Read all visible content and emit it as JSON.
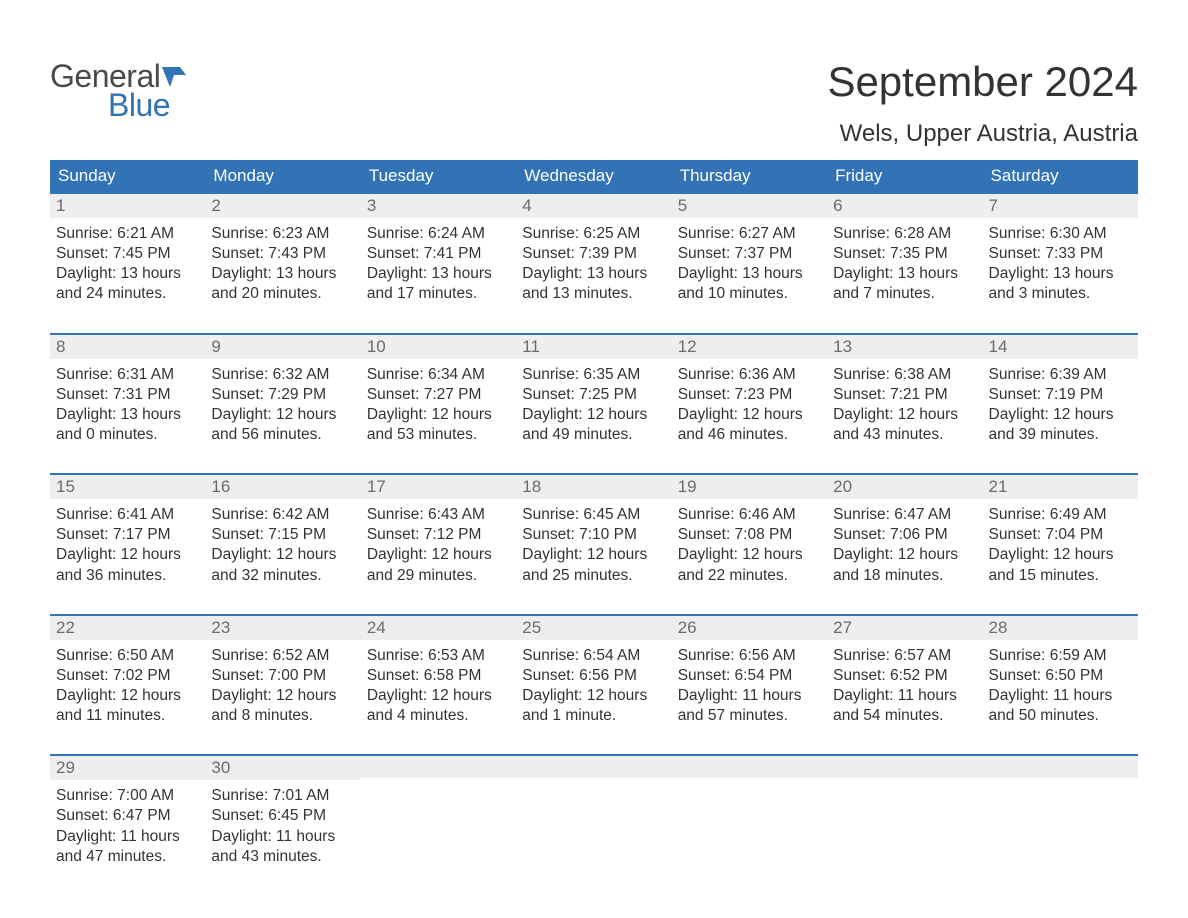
{
  "logo": {
    "text1": "General",
    "text2": "Blue",
    "icon_color": "#3273b5"
  },
  "header": {
    "month_title": "September 2024",
    "location": "Wels, Upper Austria, Austria"
  },
  "colors": {
    "header_bg": "#3273b5",
    "daynum_bg": "#eeeeee",
    "border": "#3273b5",
    "text": "#333333",
    "daynum_text": "#6b6b6b",
    "logo_gray": "#4a4a4a",
    "logo_blue": "#3273b5",
    "background": "#ffffff"
  },
  "typography": {
    "title_fontsize": 42,
    "location_fontsize": 24,
    "header_fontsize": 17,
    "daynum_fontsize": 17,
    "info_fontsize": 15.5
  },
  "day_names": [
    "Sunday",
    "Monday",
    "Tuesday",
    "Wednesday",
    "Thursday",
    "Friday",
    "Saturday"
  ],
  "weeks": [
    [
      {
        "num": "1",
        "sunrise": "Sunrise: 6:21 AM",
        "sunset": "Sunset: 7:45 PM",
        "daylight1": "Daylight: 13 hours",
        "daylight2": "and 24 minutes."
      },
      {
        "num": "2",
        "sunrise": "Sunrise: 6:23 AM",
        "sunset": "Sunset: 7:43 PM",
        "daylight1": "Daylight: 13 hours",
        "daylight2": "and 20 minutes."
      },
      {
        "num": "3",
        "sunrise": "Sunrise: 6:24 AM",
        "sunset": "Sunset: 7:41 PM",
        "daylight1": "Daylight: 13 hours",
        "daylight2": "and 17 minutes."
      },
      {
        "num": "4",
        "sunrise": "Sunrise: 6:25 AM",
        "sunset": "Sunset: 7:39 PM",
        "daylight1": "Daylight: 13 hours",
        "daylight2": "and 13 minutes."
      },
      {
        "num": "5",
        "sunrise": "Sunrise: 6:27 AM",
        "sunset": "Sunset: 7:37 PM",
        "daylight1": "Daylight: 13 hours",
        "daylight2": "and 10 minutes."
      },
      {
        "num": "6",
        "sunrise": "Sunrise: 6:28 AM",
        "sunset": "Sunset: 7:35 PM",
        "daylight1": "Daylight: 13 hours",
        "daylight2": "and 7 minutes."
      },
      {
        "num": "7",
        "sunrise": "Sunrise: 6:30 AM",
        "sunset": "Sunset: 7:33 PM",
        "daylight1": "Daylight: 13 hours",
        "daylight2": "and 3 minutes."
      }
    ],
    [
      {
        "num": "8",
        "sunrise": "Sunrise: 6:31 AM",
        "sunset": "Sunset: 7:31 PM",
        "daylight1": "Daylight: 13 hours",
        "daylight2": "and 0 minutes."
      },
      {
        "num": "9",
        "sunrise": "Sunrise: 6:32 AM",
        "sunset": "Sunset: 7:29 PM",
        "daylight1": "Daylight: 12 hours",
        "daylight2": "and 56 minutes."
      },
      {
        "num": "10",
        "sunrise": "Sunrise: 6:34 AM",
        "sunset": "Sunset: 7:27 PM",
        "daylight1": "Daylight: 12 hours",
        "daylight2": "and 53 minutes."
      },
      {
        "num": "11",
        "sunrise": "Sunrise: 6:35 AM",
        "sunset": "Sunset: 7:25 PM",
        "daylight1": "Daylight: 12 hours",
        "daylight2": "and 49 minutes."
      },
      {
        "num": "12",
        "sunrise": "Sunrise: 6:36 AM",
        "sunset": "Sunset: 7:23 PM",
        "daylight1": "Daylight: 12 hours",
        "daylight2": "and 46 minutes."
      },
      {
        "num": "13",
        "sunrise": "Sunrise: 6:38 AM",
        "sunset": "Sunset: 7:21 PM",
        "daylight1": "Daylight: 12 hours",
        "daylight2": "and 43 minutes."
      },
      {
        "num": "14",
        "sunrise": "Sunrise: 6:39 AM",
        "sunset": "Sunset: 7:19 PM",
        "daylight1": "Daylight: 12 hours",
        "daylight2": "and 39 minutes."
      }
    ],
    [
      {
        "num": "15",
        "sunrise": "Sunrise: 6:41 AM",
        "sunset": "Sunset: 7:17 PM",
        "daylight1": "Daylight: 12 hours",
        "daylight2": "and 36 minutes."
      },
      {
        "num": "16",
        "sunrise": "Sunrise: 6:42 AM",
        "sunset": "Sunset: 7:15 PM",
        "daylight1": "Daylight: 12 hours",
        "daylight2": "and 32 minutes."
      },
      {
        "num": "17",
        "sunrise": "Sunrise: 6:43 AM",
        "sunset": "Sunset: 7:12 PM",
        "daylight1": "Daylight: 12 hours",
        "daylight2": "and 29 minutes."
      },
      {
        "num": "18",
        "sunrise": "Sunrise: 6:45 AM",
        "sunset": "Sunset: 7:10 PM",
        "daylight1": "Daylight: 12 hours",
        "daylight2": "and 25 minutes."
      },
      {
        "num": "19",
        "sunrise": "Sunrise: 6:46 AM",
        "sunset": "Sunset: 7:08 PM",
        "daylight1": "Daylight: 12 hours",
        "daylight2": "and 22 minutes."
      },
      {
        "num": "20",
        "sunrise": "Sunrise: 6:47 AM",
        "sunset": "Sunset: 7:06 PM",
        "daylight1": "Daylight: 12 hours",
        "daylight2": "and 18 minutes."
      },
      {
        "num": "21",
        "sunrise": "Sunrise: 6:49 AM",
        "sunset": "Sunset: 7:04 PM",
        "daylight1": "Daylight: 12 hours",
        "daylight2": "and 15 minutes."
      }
    ],
    [
      {
        "num": "22",
        "sunrise": "Sunrise: 6:50 AM",
        "sunset": "Sunset: 7:02 PM",
        "daylight1": "Daylight: 12 hours",
        "daylight2": "and 11 minutes."
      },
      {
        "num": "23",
        "sunrise": "Sunrise: 6:52 AM",
        "sunset": "Sunset: 7:00 PM",
        "daylight1": "Daylight: 12 hours",
        "daylight2": "and 8 minutes."
      },
      {
        "num": "24",
        "sunrise": "Sunrise: 6:53 AM",
        "sunset": "Sunset: 6:58 PM",
        "daylight1": "Daylight: 12 hours",
        "daylight2": "and 4 minutes."
      },
      {
        "num": "25",
        "sunrise": "Sunrise: 6:54 AM",
        "sunset": "Sunset: 6:56 PM",
        "daylight1": "Daylight: 12 hours",
        "daylight2": "and 1 minute."
      },
      {
        "num": "26",
        "sunrise": "Sunrise: 6:56 AM",
        "sunset": "Sunset: 6:54 PM",
        "daylight1": "Daylight: 11 hours",
        "daylight2": "and 57 minutes."
      },
      {
        "num": "27",
        "sunrise": "Sunrise: 6:57 AM",
        "sunset": "Sunset: 6:52 PM",
        "daylight1": "Daylight: 11 hours",
        "daylight2": "and 54 minutes."
      },
      {
        "num": "28",
        "sunrise": "Sunrise: 6:59 AM",
        "sunset": "Sunset: 6:50 PM",
        "daylight1": "Daylight: 11 hours",
        "daylight2": "and 50 minutes."
      }
    ],
    [
      {
        "num": "29",
        "sunrise": "Sunrise: 7:00 AM",
        "sunset": "Sunset: 6:47 PM",
        "daylight1": "Daylight: 11 hours",
        "daylight2": "and 47 minutes."
      },
      {
        "num": "30",
        "sunrise": "Sunrise: 7:01 AM",
        "sunset": "Sunset: 6:45 PM",
        "daylight1": "Daylight: 11 hours",
        "daylight2": "and 43 minutes."
      },
      null,
      null,
      null,
      null,
      null
    ]
  ]
}
